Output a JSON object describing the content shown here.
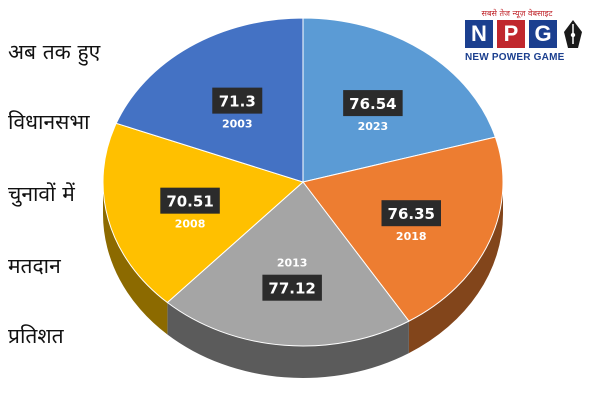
{
  "side_title_lines": [
    "अब तक हुए",
    "विधानसभा",
    "चुनावों में",
    "मतदान",
    "प्रतिशत"
  ],
  "logo": {
    "tagline": "सबसे तेज न्यूज़ वेबसाइट",
    "letters": [
      "N",
      "P",
      "G"
    ],
    "name": "NEW POWER GAME",
    "icon": "pen-nib-icon"
  },
  "chart_data": {
    "type": "pie",
    "title": "",
    "categories": [
      "2023",
      "2018",
      "2013",
      "2008",
      "2003"
    ],
    "values": [
      76.54,
      76.35,
      77.12,
      70.51,
      71.3
    ],
    "colors": [
      "#5b9bd5",
      "#ed7d31",
      "#a5a5a5",
      "#ffc000",
      "#4472c4"
    ],
    "start_angle_deg": -90,
    "direction": "clockwise",
    "style": "3d-tilted",
    "legend": "none"
  }
}
